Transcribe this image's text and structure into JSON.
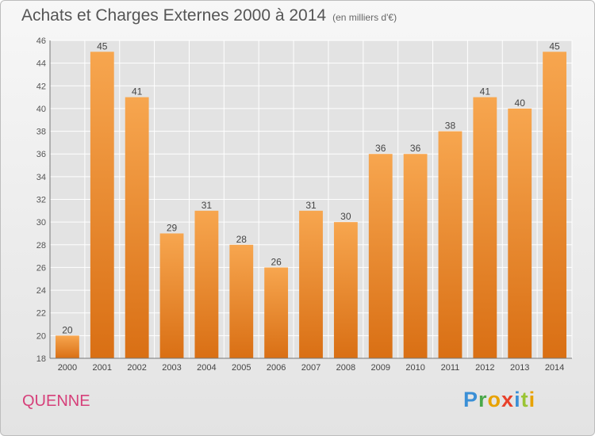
{
  "title": "Achats et Charges Externes 2000 à 2014",
  "unit_label": "(en milliers d'€)",
  "place": "QUENNE",
  "logo": "Proxiti",
  "colors": {
    "bar_top": "#f7a64f",
    "bar_bottom": "#d96f14",
    "grid": "#ffffff",
    "plot_bg": "#e3e3e3",
    "place": "#d6407a"
  },
  "chart_data": {
    "type": "bar",
    "categories": [
      "2000",
      "2001",
      "2002",
      "2003",
      "2004",
      "2005",
      "2006",
      "2007",
      "2008",
      "2009",
      "2010",
      "2011",
      "2012",
      "2013",
      "2014"
    ],
    "values": [
      20,
      45,
      41,
      29,
      31,
      28,
      26,
      31,
      30,
      36,
      36,
      38,
      41,
      40,
      45
    ],
    "ylim": [
      18,
      46
    ],
    "yticks": [
      18,
      20,
      22,
      24,
      26,
      28,
      30,
      32,
      34,
      36,
      38,
      40,
      42,
      44,
      46
    ],
    "grid": true,
    "data_labels": true
  }
}
